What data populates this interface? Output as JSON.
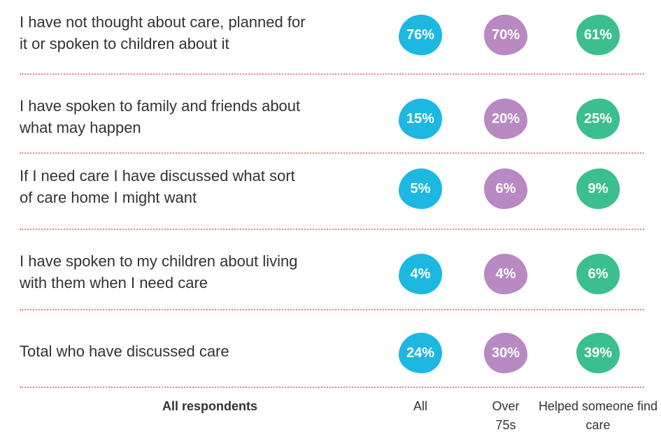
{
  "table": {
    "rows": [
      {
        "label": [
          "I have not thought about care, planned for",
          "it or spoken to children about it"
        ],
        "values": [
          "76%",
          "70%",
          "61%"
        ]
      },
      {
        "label": [
          "I have spoken to family and friends about",
          "what may happen"
        ],
        "values": [
          "15%",
          "20%",
          "25%"
        ]
      },
      {
        "label": [
          "If I need care I have discussed what sort",
          "of care home I might want"
        ],
        "values": [
          "5%",
          "6%",
          "9%"
        ]
      },
      {
        "label": [
          "I have spoken to my children about living",
          "with them when I need care"
        ],
        "values": [
          "4%",
          "4%",
          "6%"
        ]
      },
      {
        "label": [
          "Total who have discussed care"
        ],
        "values": [
          "24%",
          "30%",
          "39%"
        ]
      }
    ],
    "footer": {
      "title": "All respondents",
      "columns": [
        "All",
        "Over 75s",
        "Helped someone find care"
      ]
    }
  }
}
